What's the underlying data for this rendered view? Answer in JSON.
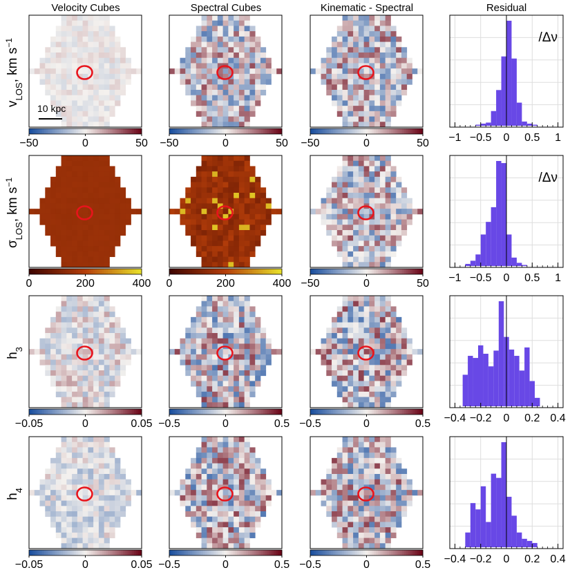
{
  "chart_data": {
    "type": "heatmap",
    "column_titles": [
      "Velocity Cubes",
      "Spectral Cubes",
      "Kinematic - Spectral",
      "Residual"
    ],
    "rows": [
      {
        "id": "vlos",
        "label_main": "v",
        "label_sub": "LOS",
        "label_unit": ", km s",
        "label_sup": "−1",
        "scale_bar": "10 kpc",
        "hist_annotation": "/Δν",
        "maps": [
          {
            "cmap": "div",
            "vmin": -50,
            "vmax": 50,
            "ticks": [
              "−50",
              "0",
              "50"
            ],
            "amp": 0.15,
            "center_bias": 0,
            "seed": 11
          },
          {
            "cmap": "div",
            "vmin": -50,
            "vmax": 50,
            "ticks": [
              "−50",
              "0",
              "50"
            ],
            "amp": 0.7,
            "center_bias": 0,
            "seed": 23
          },
          {
            "cmap": "div",
            "vmin": -50,
            "vmax": 50,
            "ticks": [
              "−50",
              "0",
              "50"
            ],
            "amp": 0.7,
            "center_bias": 0,
            "seed": 37
          }
        ],
        "hist": {
          "ticks": [
            "−1",
            "−0.5",
            "0",
            "0.5",
            "1"
          ],
          "tick_values": [
            -1,
            -0.5,
            0,
            0.5,
            1
          ],
          "xlim": [
            -1.1,
            1.1
          ],
          "bin_start": -0.6,
          "bin_width": 0.1,
          "counts": [
            1,
            2,
            3,
            14,
            34,
            66,
            100,
            64,
            22,
            4,
            2,
            1
          ]
        }
      },
      {
        "id": "sigma",
        "label_main": "σ",
        "label_sub": "LOS",
        "label_unit": ", km s",
        "label_sup": "−1",
        "scale_bar": "",
        "hist_annotation": "/Δν",
        "maps": [
          {
            "cmap": "seq",
            "vmin": 0,
            "vmax": 400,
            "ticks": [
              "0",
              "200",
              "400"
            ],
            "amp": 0.02,
            "center_bias": 0.38,
            "seed": 41
          },
          {
            "cmap": "seq",
            "vmin": 0,
            "vmax": 400,
            "ticks": [
              "0",
              "200",
              "400"
            ],
            "amp": 0.22,
            "center_bias": 0.45,
            "seed": 53
          },
          {
            "cmap": "div",
            "vmin": -50,
            "vmax": 50,
            "ticks": [
              "−50",
              "0",
              "50"
            ],
            "amp": 0.7,
            "center_bias": 0,
            "seed": 67
          }
        ],
        "hist": {
          "ticks": [
            "−1",
            "−0.5",
            "0",
            "0.5",
            "1"
          ],
          "tick_values": [
            -1,
            -0.5,
            0,
            0.5,
            1
          ],
          "xlim": [
            -1.1,
            1.1
          ],
          "bin_start": -0.8,
          "bin_width": 0.1,
          "counts": [
            2,
            5,
            11,
            30,
            42,
            56,
            100,
            98,
            30,
            8,
            3,
            1
          ]
        }
      },
      {
        "id": "h3",
        "label_main": "h",
        "label_sub": "3",
        "label_unit": "",
        "label_sup": "",
        "scale_bar": "",
        "hist_annotation": "",
        "maps": [
          {
            "cmap": "div",
            "vmin": -0.05,
            "vmax": 0.05,
            "ticks": [
              "−0.05",
              "0",
              "0.05"
            ],
            "amp": 0.35,
            "center_bias": 0,
            "seed": 71
          },
          {
            "cmap": "div",
            "vmin": -0.5,
            "vmax": 0.5,
            "ticks": [
              "−0.5",
              "0",
              "0.5"
            ],
            "amp": 0.75,
            "center_bias": 0,
            "seed": 83
          },
          {
            "cmap": "div",
            "vmin": -0.5,
            "vmax": 0.5,
            "ticks": [
              "−0.5",
              "0",
              "0.5"
            ],
            "amp": 0.75,
            "center_bias": 0,
            "seed": 97
          }
        ],
        "hist": {
          "ticks": [
            "−0.4",
            "−0.2",
            "0",
            "0.2",
            "0.4"
          ],
          "tick_values": [
            -0.4,
            -0.2,
            0,
            0.2,
            0.4
          ],
          "xlim": [
            -0.44,
            0.44
          ],
          "bin_start": -0.34,
          "bin_width": 0.04,
          "counts": [
            30,
            48,
            46,
            58,
            50,
            38,
            53,
            100,
            66,
            54,
            48,
            34,
            56,
            24,
            8
          ]
        }
      },
      {
        "id": "h4",
        "label_main": "h",
        "label_sub": "4",
        "label_unit": "",
        "label_sup": "",
        "scale_bar": "",
        "hist_annotation": "",
        "maps": [
          {
            "cmap": "div",
            "vmin": -0.05,
            "vmax": 0.05,
            "ticks": [
              "−0.05",
              "0",
              "0.05"
            ],
            "amp": 0.28,
            "center_bias": -0.12,
            "seed": 103
          },
          {
            "cmap": "div",
            "vmin": -0.5,
            "vmax": 0.5,
            "ticks": [
              "−0.5",
              "0",
              "0.5"
            ],
            "amp": 0.75,
            "center_bias": 0,
            "seed": 113
          },
          {
            "cmap": "div",
            "vmin": -0.5,
            "vmax": 0.5,
            "ticks": [
              "−0.5",
              "0",
              "0.5"
            ],
            "amp": 0.75,
            "center_bias": 0,
            "seed": 127
          }
        ],
        "hist": {
          "ticks": [
            "−0.4",
            "−0.2",
            "0",
            "0.2",
            "0.4"
          ],
          "tick_values": [
            -0.4,
            -0.2,
            0,
            0.2,
            0.4
          ],
          "xlim": [
            -0.44,
            0.44
          ],
          "bin_start": -0.32,
          "bin_width": 0.04,
          "counts": [
            14,
            42,
            36,
            58,
            24,
            70,
            66,
            100,
            48,
            30,
            14,
            8,
            6,
            4
          ]
        }
      }
    ]
  },
  "colors": {
    "bar": "#6848e6",
    "circle": "#e8141c",
    "div_low": "#1b4f9e",
    "div_mid": "#f4f1ee",
    "div_high": "#6b0518",
    "seq_low": "#3f0500",
    "seq_mid": "#b53e0a",
    "seq_high": "#e8e02a",
    "grid": "#dddddd"
  }
}
